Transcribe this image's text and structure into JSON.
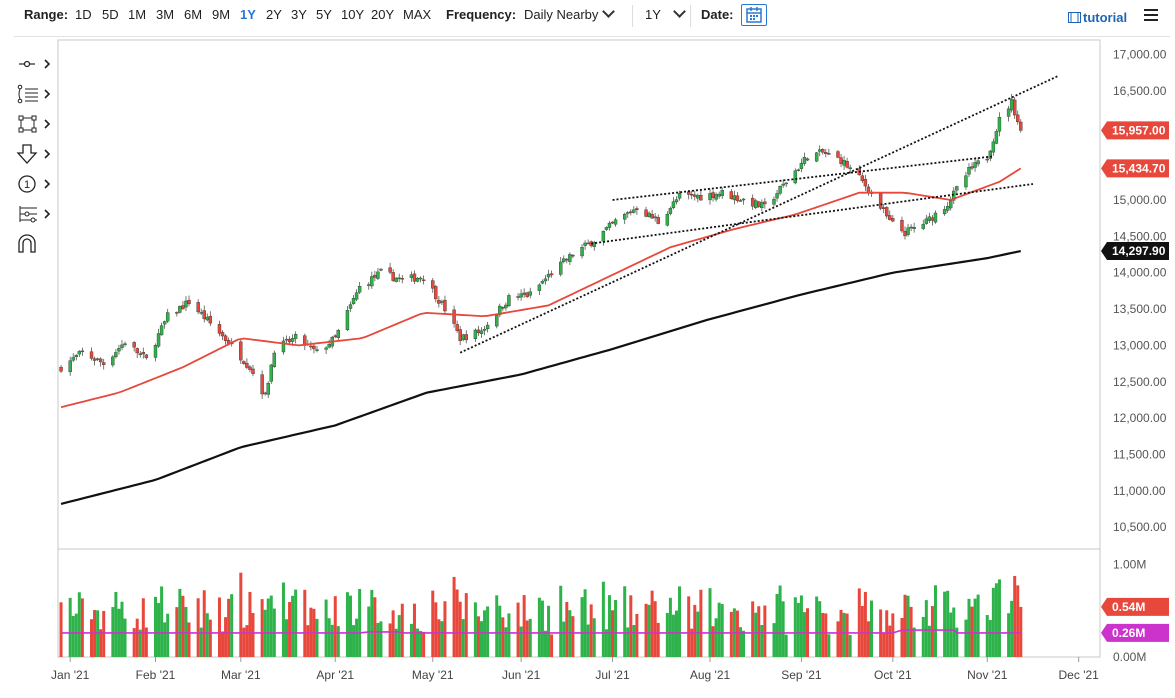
{
  "toolbar": {
    "range_label": "Range:",
    "ranges": [
      "1D",
      "5D",
      "1M",
      "3M",
      "6M",
      "9M",
      "1Y",
      "2Y",
      "3Y",
      "5Y",
      "10Y",
      "20Y",
      "MAX"
    ],
    "active_range": "1Y",
    "frequency_label": "Frequency:",
    "frequency_value": "Daily Nearby",
    "period_value": "1Y",
    "date_label": "Date:",
    "tutorial_label": "tutorial"
  },
  "left_tools": [
    "crosshair-tool-icon",
    "fibonacci-tool-icon",
    "rectangle-tool-icon",
    "arrow-down-tool-icon",
    "counter-tool-icon",
    "pattern-tool-icon",
    "magnet-icon"
  ],
  "colors": {
    "up": "#2db34a",
    "down": "#e8483b",
    "ma_fast": "#e8483b",
    "ma_slow": "#111111",
    "volume_avg": "#cc33cc",
    "accent": "#2a78d4"
  },
  "chart_data": {
    "type": "candlestick",
    "x_range": [
      "2020-12-31",
      "2021-12-08"
    ],
    "x_ticks": [
      {
        "label": "Jan '21",
        "date": "2021-01-04"
      },
      {
        "label": "Feb '21",
        "date": "2021-02-01"
      },
      {
        "label": "Mar '21",
        "date": "2021-03-01"
      },
      {
        "label": "Apr '21",
        "date": "2021-04-01"
      },
      {
        "label": "May '21",
        "date": "2021-05-03"
      },
      {
        "label": "Jun '21",
        "date": "2021-06-01"
      },
      {
        "label": "Jul '21",
        "date": "2021-07-01"
      },
      {
        "label": "Aug '21",
        "date": "2021-08-02"
      },
      {
        "label": "Sep '21",
        "date": "2021-09-01"
      },
      {
        "label": "Oct '21",
        "date": "2021-10-01"
      },
      {
        "label": "Nov '21",
        "date": "2021-11-01"
      },
      {
        "label": "Dec '21",
        "date": "2021-12-01"
      }
    ],
    "price_axis": {
      "min": 10200,
      "max": 17200,
      "ticks": [
        {
          "value": 17000,
          "label": "17,000.00"
        },
        {
          "value": 16500,
          "label": "16,500.00"
        },
        {
          "value": 16000,
          "label": "16,000.00"
        },
        {
          "value": 15000,
          "label": "15,000.00"
        },
        {
          "value": 14500,
          "label": "14,500.00"
        },
        {
          "value": 14000,
          "label": "14,000.00"
        },
        {
          "value": 13500,
          "label": "13,500.00"
        },
        {
          "value": 13000,
          "label": "13,000.00"
        },
        {
          "value": 12500,
          "label": "12,500.00"
        },
        {
          "value": 12000,
          "label": "12,000.00"
        },
        {
          "value": 11500,
          "label": "11,500.00"
        },
        {
          "value": 11000,
          "label": "11,000.00"
        },
        {
          "value": 10500,
          "label": "10,500.00"
        }
      ]
    },
    "price_badges": [
      {
        "value": 15957.0,
        "label": "15,957.00",
        "color": "#e8483b"
      },
      {
        "value": 15434.7,
        "label": "15,434.70",
        "color": "#e8483b"
      },
      {
        "value": 14297.9,
        "label": "14,297.90",
        "color": "#111111"
      }
    ],
    "volume_axis": {
      "min": 0,
      "max": 1.1,
      "ticks": [
        {
          "value": 1.0,
          "label": "1.00M"
        },
        {
          "value": 0.5,
          "label": "0.50M"
        },
        {
          "value": 0.0,
          "label": "0.00M"
        }
      ]
    },
    "volume_badges": [
      {
        "value": 0.54,
        "label": "0.54M",
        "color": "#e8483b"
      },
      {
        "value": 0.26,
        "label": "0.26M",
        "color": "#cc33cc"
      }
    ],
    "price_anchors": [
      [
        "2021-01-01",
        12700
      ],
      [
        "2021-01-08",
        12900
      ],
      [
        "2021-01-15",
        12750
      ],
      [
        "2021-01-22",
        13050
      ],
      [
        "2021-01-29",
        12800
      ],
      [
        "2021-02-05",
        13400
      ],
      [
        "2021-02-12",
        13600
      ],
      [
        "2021-02-19",
        13300
      ],
      [
        "2021-02-26",
        13000
      ],
      [
        "2021-03-04",
        12700
      ],
      [
        "2021-03-09",
        12300
      ],
      [
        "2021-03-12",
        12950
      ],
      [
        "2021-03-19",
        13100
      ],
      [
        "2021-03-26",
        12900
      ],
      [
        "2021-04-01",
        13100
      ],
      [
        "2021-04-09",
        13800
      ],
      [
        "2021-04-16",
        14000
      ],
      [
        "2021-04-23",
        13900
      ],
      [
        "2021-04-30",
        13950
      ],
      [
        "2021-05-07",
        13500
      ],
      [
        "2021-05-12",
        13100
      ],
      [
        "2021-05-19",
        13200
      ],
      [
        "2021-05-28",
        13650
      ],
      [
        "2021-06-04",
        13700
      ],
      [
        "2021-06-11",
        14000
      ],
      [
        "2021-06-18",
        14250
      ],
      [
        "2021-06-25",
        14450
      ],
      [
        "2021-07-02",
        14700
      ],
      [
        "2021-07-09",
        14900
      ],
      [
        "2021-07-16",
        14700
      ],
      [
        "2021-07-23",
        15050
      ],
      [
        "2021-07-30",
        15050
      ],
      [
        "2021-08-06",
        15100
      ],
      [
        "2021-08-13",
        15000
      ],
      [
        "2021-08-20",
        14900
      ],
      [
        "2021-08-27",
        15250
      ],
      [
        "2021-09-03",
        15600
      ],
      [
        "2021-09-08",
        15650
      ],
      [
        "2021-09-14",
        15550
      ],
      [
        "2021-09-20",
        15300
      ],
      [
        "2021-09-24",
        15100
      ],
      [
        "2021-09-30",
        14700
      ],
      [
        "2021-10-05",
        14550
      ],
      [
        "2021-10-12",
        14700
      ],
      [
        "2021-10-19",
        14950
      ],
      [
        "2021-10-26",
        15400
      ],
      [
        "2021-11-01",
        15600
      ],
      [
        "2021-11-05",
        16100
      ],
      [
        "2021-11-09",
        16350
      ],
      [
        "2021-11-12",
        15957
      ]
    ],
    "ma_fast_anchors": [
      [
        "2021-01-01",
        12150
      ],
      [
        "2021-01-20",
        12350
      ],
      [
        "2021-02-10",
        12700
      ],
      [
        "2021-03-01",
        13100
      ],
      [
        "2021-03-20",
        13000
      ],
      [
        "2021-04-10",
        13100
      ],
      [
        "2021-04-30",
        13450
      ],
      [
        "2021-05-20",
        13400
      ],
      [
        "2021-06-10",
        13550
      ],
      [
        "2021-06-30",
        13950
      ],
      [
        "2021-07-20",
        14350
      ],
      [
        "2021-08-10",
        14600
      ],
      [
        "2021-08-30",
        14800
      ],
      [
        "2021-09-20",
        15100
      ],
      [
        "2021-10-05",
        15100
      ],
      [
        "2021-10-20",
        15000
      ],
      [
        "2021-11-05",
        15250
      ],
      [
        "2021-11-12",
        15434.7
      ]
    ],
    "ma_slow_anchors": [
      [
        "2021-01-01",
        10820
      ],
      [
        "2021-02-01",
        11150
      ],
      [
        "2021-03-01",
        11600
      ],
      [
        "2021-04-01",
        11900
      ],
      [
        "2021-05-01",
        12350
      ],
      [
        "2021-06-01",
        12600
      ],
      [
        "2021-07-01",
        12950
      ],
      [
        "2021-08-01",
        13350
      ],
      [
        "2021-09-01",
        13700
      ],
      [
        "2021-10-01",
        14000
      ],
      [
        "2021-11-01",
        14200
      ],
      [
        "2021-11-12",
        14297.9
      ]
    ],
    "trendlines": [
      {
        "start": [
          "2021-05-12",
          12900
        ],
        "end": [
          "2021-11-24",
          16700
        ]
      },
      {
        "start": [
          "2021-07-01",
          15000
        ],
        "end": [
          "2021-11-03",
          15600
        ]
      },
      {
        "start": [
          "2021-06-24",
          14400
        ],
        "end": [
          "2021-11-16",
          15220
        ]
      }
    ],
    "volume_avg": 0.26,
    "last_volume": 0.54
  }
}
